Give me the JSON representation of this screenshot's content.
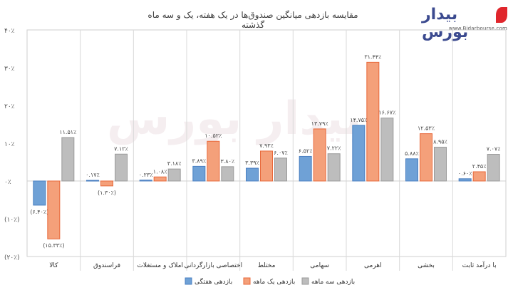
{
  "title": "مقایسه بازدهی میانگین صندوق‌ها در یک هفته، یک و سه ماه گذشته",
  "logo": {
    "word": "بیدار بورس",
    "url": "www.Bidarbourse.com"
  },
  "colors": {
    "weekly": "#6fa1d6",
    "monthly": "#f4a07a",
    "three_month": "#bdbdbd",
    "weekly_stroke": "#4a7fc1",
    "monthly_stroke": "#e8683a",
    "three_month_stroke": "#9a9a9a"
  },
  "chart_data": {
    "type": "bar",
    "title": "مقایسه بازدهی میانگین صندوق‌ها در یک هفته، یک و سه ماه گذشته",
    "categories": [
      "کالا",
      "فراسندوق",
      "املاک و مستغلات",
      "اختصاصی بازارگردانی",
      "مختلط",
      "سهامی",
      "اهرمی",
      "بخشی",
      "با درآمد ثابت"
    ],
    "series": [
      {
        "name": "بازدهی هفتگی",
        "key": "weekly",
        "values": [
          -6.4,
          0.17,
          0.23,
          3.89,
          3.39,
          6.52,
          14.75,
          5.88,
          0.6
        ],
        "labels": [
          "(۶.۴۰٪)",
          "۰.۱۷٪",
          "۰.۲۳٪",
          "۳.۸۹٪",
          "۳.۳۹٪",
          "۶.۵۲٪",
          "۱۴.۷۵٪",
          "۵.۸۸٪",
          "۰.۶۰٪"
        ]
      },
      {
        "name": "بازدهی یک ماهه",
        "key": "monthly",
        "values": [
          -15.33,
          -1.3,
          1.08,
          10.52,
          7.93,
          13.79,
          31.44,
          12.53,
          2.45
        ],
        "labels": [
          "(۱۵.۳۳٪)",
          "(۱.۳۰٪)",
          "۱.۰۸٪",
          "۱۰.۵۲٪",
          "۷.۹۳٪",
          "۱۳.۷۹٪",
          "۳۱.۴۴٪",
          "۱۲.۵۳٪",
          "۲.۴۵٪"
        ]
      },
      {
        "name": "بازدهی سه ماهه",
        "key": "three_month",
        "values": [
          11.51,
          7.12,
          3.18,
          3.8,
          6.07,
          7.22,
          16.67,
          8.95,
          7.07
        ],
        "labels": [
          "۱۱.۵۱٪",
          "۷.۱۲٪",
          "۳.۱۸٪",
          "۳.۸۰٪",
          "۶.۰۷٪",
          "۷.۲۲٪",
          "۱۶.۶۷٪",
          "۸.۹۵٪",
          "۷.۰۷٪"
        ]
      }
    ],
    "y_ticks": [
      40,
      30,
      20,
      10,
      0,
      -10,
      -20
    ],
    "y_tick_labels": [
      "۴۰٪",
      "۳۰٪",
      "۲۰٪",
      "۱۰٪",
      "۰٪",
      "(۱۰٪)",
      "(۲۰٪)"
    ],
    "ylim": [
      -20,
      40
    ],
    "grid": "vertical separators",
    "legend_position": "bottom"
  }
}
